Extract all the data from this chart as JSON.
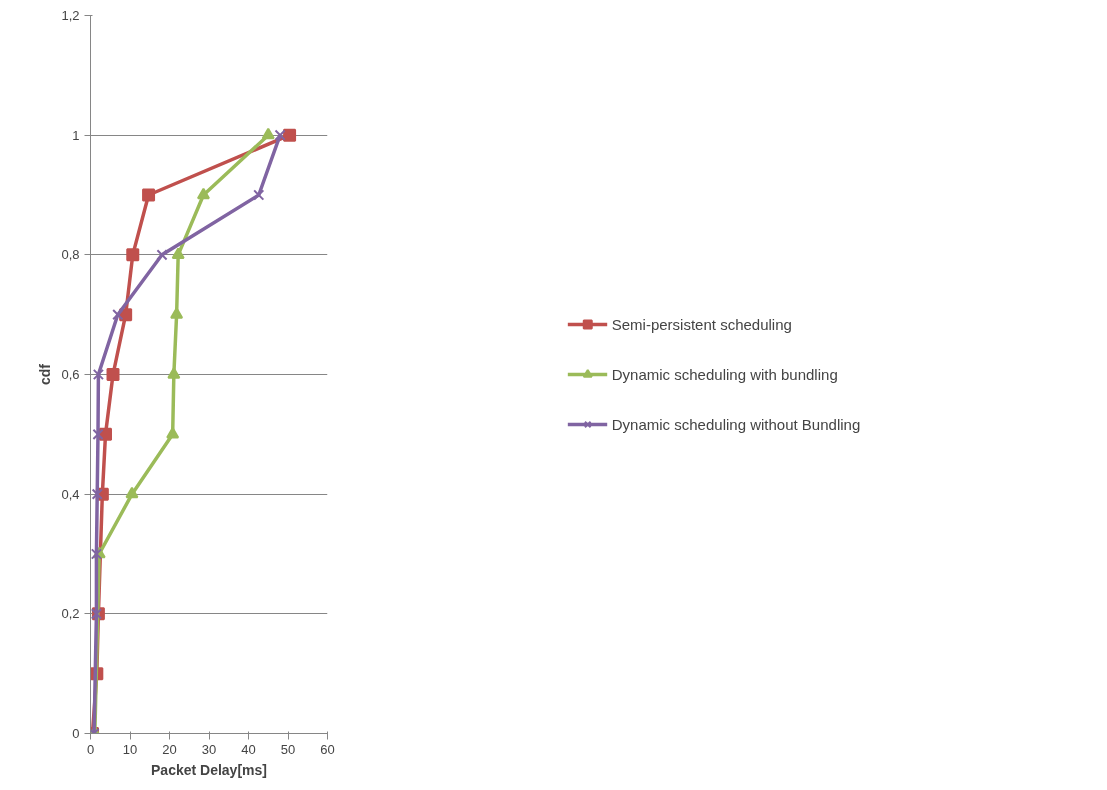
{
  "chart_data": {
    "type": "line",
    "xlabel": "Packet Delay[ms]",
    "ylabel": "cdf",
    "xlim": [
      0,
      60
    ],
    "xticks": [
      0,
      10,
      20,
      30,
      40,
      50,
      60
    ],
    "ylim": [
      0,
      1.2
    ],
    "yticks": [
      0,
      {
        "value": 0.2,
        "label": "0,2"
      },
      {
        "value": 0.4,
        "label": "0,4"
      },
      {
        "value": 0.6,
        "label": "0,6"
      },
      {
        "value": 0.8,
        "label": "0,8"
      },
      1,
      {
        "value": 1.2,
        "label": "1,2"
      }
    ],
    "grid": "y",
    "legend": "right",
    "line_style": "solid",
    "series": [
      {
        "name": "Semi-persistent scheduling",
        "color": "#c0504d",
        "marker": "square",
        "x": [
          0.5,
          1.6,
          2.0,
          3.0,
          3.8,
          5.7,
          8.9,
          10.7,
          14.7,
          50.4
        ],
        "values": [
          0,
          0.1,
          0.2,
          0.4,
          0.5,
          0.6,
          0.7,
          0.8,
          0.9,
          1.0
        ]
      },
      {
        "name": "Dynamic scheduling with bundling",
        "color": "#9bbb59",
        "marker": "triangle",
        "x": [
          1.1,
          2.2,
          10.5,
          20.8,
          21.1,
          21.8,
          22.2,
          28.6,
          45
        ],
        "values": [
          0,
          0.3,
          0.4,
          0.5,
          0.6,
          0.7,
          0.8,
          0.9,
          1.0
        ]
      },
      {
        "name": "Dynamic scheduling without Bundling",
        "color": "#8064a2",
        "marker": "cross",
        "x": [
          0.9,
          1.5,
          1.5,
          1.7,
          1.9,
          2.0,
          6.9,
          18.1,
          42.6,
          48
        ],
        "values": [
          0,
          0.2,
          0.3,
          0.4,
          0.5,
          0.6,
          0.7,
          0.8,
          0.9,
          1.0
        ]
      }
    ]
  }
}
